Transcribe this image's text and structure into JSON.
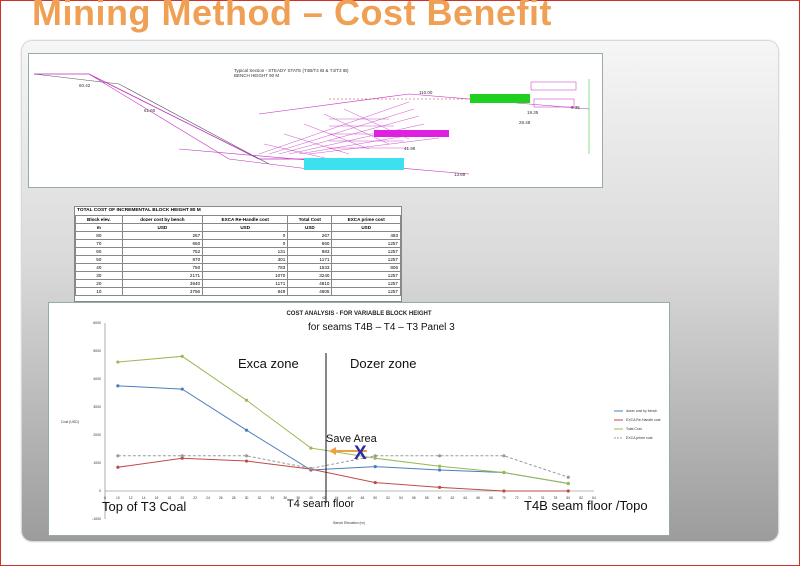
{
  "slide": {
    "title": "Mining Method – Cost Benefit"
  },
  "section_drawing": {
    "title_line1": "Typical Section - STEADY STATE (T4B/T4 IB & T4/T3 IB)",
    "title_line2": "BENCH HEIGHT 90 M",
    "labels": [
      "110.00",
      "19.35",
      "28.48",
      "41.99",
      "13.69",
      "9.35",
      "60.42",
      "61.60"
    ]
  },
  "cost_table": {
    "title": "TOTAL COST OF INCREMENTAL BLOCK HEIGHT 80 M",
    "headers": [
      "Block elev.",
      "dozer cost by bench",
      "EXCA Re-Handle cost",
      "Total Cost",
      "EXCA prime cost"
    ],
    "units": [
      "m",
      "USD",
      "USD",
      "USD",
      "USD"
    ],
    "rows": [
      [
        "80",
        "267",
        "0",
        "267",
        "493"
      ],
      [
        "70",
        "660",
        "0",
        "660",
        "1257"
      ],
      [
        "60",
        "752",
        "131",
        "883",
        "1257"
      ],
      [
        "50",
        "870",
        "301",
        "1171",
        "1257"
      ],
      [
        "40",
        "750",
        "783",
        "1533",
        "806"
      ],
      [
        "30",
        "2171",
        "1070",
        "3240",
        "1257"
      ],
      [
        "20",
        "3640",
        "1171",
        "4810",
        "1257"
      ],
      [
        "10",
        "3756",
        "849",
        "4605",
        "1257"
      ]
    ]
  },
  "chart": {
    "title": "COST ANALYSIS - FOR VARIABLE BLOCK HEIGHT",
    "ylabel": "Cost (USD)",
    "xlabel": "Bench Elevation (m)",
    "legend": [
      "dozer cost by bench",
      "EXCA Re-Handle cost",
      "Total Cost",
      "EXCA prime cost"
    ],
    "colors": {
      "dozer": "#4a7ebb",
      "rehandle": "#be4b48",
      "total": "#98b954",
      "prime": "#9a9a9a"
    }
  },
  "chart_data": {
    "type": "line",
    "title": "COST ANALYSIS - FOR VARIABLE BLOCK HEIGHT",
    "xlabel": "Bench Elevation (m)",
    "ylabel": "Cost (USD)",
    "x": [
      10,
      20,
      30,
      40,
      50,
      60,
      70,
      80
    ],
    "x_ticks": [
      8,
      10,
      12,
      14,
      16,
      18,
      20,
      22,
      24,
      26,
      28,
      30,
      32,
      34,
      36,
      38,
      40,
      42,
      44,
      46,
      48,
      50,
      52,
      54,
      56,
      58,
      60,
      62,
      64,
      66,
      68,
      70,
      72,
      74,
      76,
      78,
      80,
      82,
      84
    ],
    "ylim": [
      -1000,
      6000
    ],
    "y_ticks": [
      -1000,
      0,
      1000,
      2000,
      3000,
      4000,
      5000,
      6000
    ],
    "series": [
      {
        "name": "dozer cost by bench",
        "values": [
          3756,
          3640,
          2171,
          750,
          870,
          752,
          660,
          267
        ]
      },
      {
        "name": "EXCA Re-Handle cost",
        "values": [
          849,
          1171,
          1070,
          783,
          301,
          131,
          0,
          0
        ]
      },
      {
        "name": "Total Cost",
        "values": [
          4605,
          4810,
          3240,
          1533,
          1171,
          883,
          660,
          267
        ]
      },
      {
        "name": "EXCA prime cost",
        "values": [
          1257,
          1257,
          1257,
          806,
          1257,
          1257,
          1257,
          493
        ]
      }
    ],
    "legend_position": "right",
    "grid": false
  },
  "annotations": {
    "seams": "for seams T4B – T4 – T3 Panel 3",
    "exca_zone": "Exca zone",
    "dozer_zone": "Dozer zone",
    "save_area": "Save Area",
    "x_mark": "X",
    "top_t3": "Top of T3 Coal",
    "t4_floor": "T4 seam floor",
    "t4b_floor": "T4B seam floor /Topo"
  }
}
